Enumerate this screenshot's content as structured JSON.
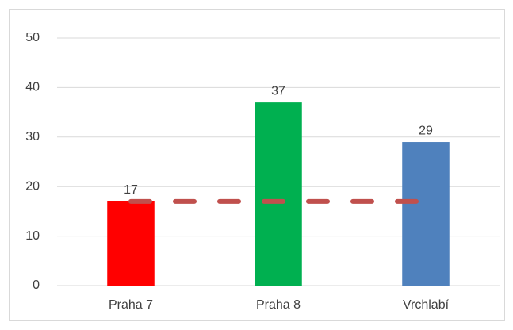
{
  "chart_data": {
    "type": "bar",
    "categories": [
      "Praha 7",
      "Praha 8",
      "Vrchlabí"
    ],
    "values": [
      17,
      37,
      29
    ],
    "colors": [
      "#ff0000",
      "#00b050",
      "#4f81bd"
    ],
    "line": {
      "values": [
        17,
        17,
        17
      ],
      "color": "#c0504d",
      "dashed": true
    },
    "ylim": [
      0,
      50
    ],
    "yticks": [
      0,
      10,
      20,
      30,
      40,
      50
    ],
    "grid": true
  }
}
